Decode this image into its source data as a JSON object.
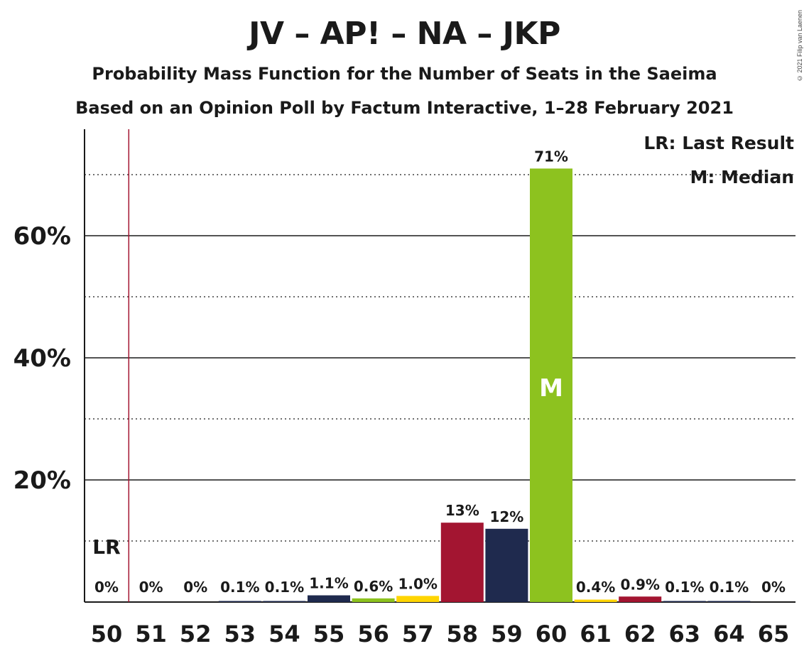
{
  "title": "JV – AP! – NA – JKP",
  "subtitle1": "Probability Mass Function for the Number of Seats in the Saeima",
  "subtitle2": "Based on an Opinion Poll by Factum Interactive, 1–28 February 2021",
  "copyright": "© 2021 Filip van Laenen",
  "legend": {
    "lr": "LR: Last Result",
    "median": "M: Median"
  },
  "markers": {
    "lr_label": "LR",
    "median_label": "M",
    "last_result_seat": 50.5,
    "median_seat": 60
  },
  "chart_data": {
    "type": "bar",
    "categories": [
      "50",
      "51",
      "52",
      "53",
      "54",
      "55",
      "56",
      "57",
      "58",
      "59",
      "60",
      "61",
      "62",
      "63",
      "64",
      "65"
    ],
    "values": [
      0,
      0,
      0,
      0.1,
      0.1,
      1.1,
      0.6,
      1.0,
      13,
      12,
      71,
      0.4,
      0.9,
      0.1,
      0.1,
      0
    ],
    "labels": [
      "0%",
      "0%",
      "0%",
      "0.1%",
      "0.1%",
      "1.1%",
      "0.6%",
      "1.0%",
      "13%",
      "12%",
      "71%",
      "0.4%",
      "0.9%",
      "0.1%",
      "0.1%",
      "0%"
    ],
    "colors": [
      "#1f2a4e",
      "#1f2a4e",
      "#1f2a4e",
      "#1f2a4e",
      "#1f2a4e",
      "#1f2a4e",
      "#8dc21f",
      "#ffd500",
      "#a31531",
      "#1f2a4e",
      "#8dc21f",
      "#ffd500",
      "#a31531",
      "#1f2a4e",
      "#1f2a4e",
      "#1f2a4e"
    ],
    "yticks": [
      20,
      40,
      60
    ],
    "ytick_labels": [
      "20%",
      "40%",
      "60%"
    ],
    "ylim": [
      0,
      77
    ],
    "grid": "major solid, minor dotted every 10%"
  }
}
